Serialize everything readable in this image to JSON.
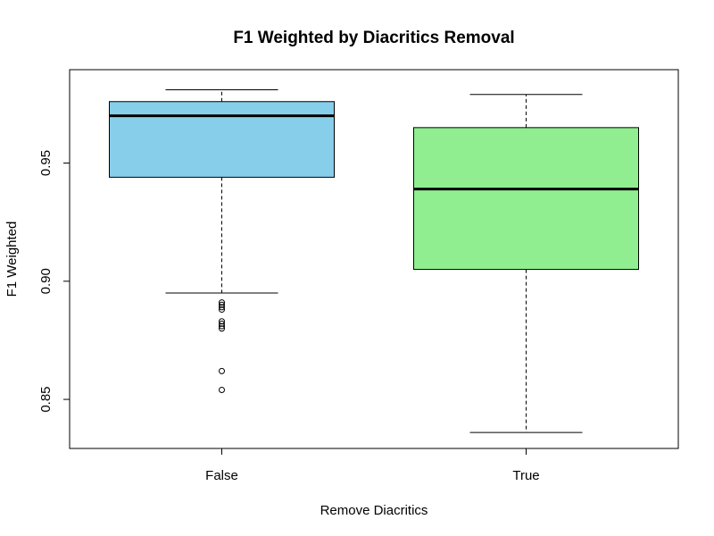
{
  "chart_data": {
    "type": "boxplot",
    "title": "F1 Weighted by Diacritics Removal",
    "xlabel": "Remove Diacritics",
    "ylabel": "F1 Weighted",
    "ylim": [
      0.83,
      0.988
    ],
    "yticks": [
      0.85,
      0.9,
      0.95
    ],
    "ytick_labels": [
      "0.85",
      "0.90",
      "0.95"
    ],
    "grid": false,
    "categories": [
      "False",
      "True"
    ],
    "boxes": [
      {
        "category": "False",
        "color": "#87CEEB",
        "whisker_low": 0.895,
        "q1": 0.944,
        "median": 0.97,
        "q3": 0.976,
        "whisker_high": 0.981,
        "outliers": [
          0.891,
          0.89,
          0.889,
          0.888,
          0.883,
          0.882,
          0.881,
          0.88,
          0.862,
          0.854
        ]
      },
      {
        "category": "True",
        "color": "#90EE90",
        "whisker_low": 0.836,
        "q1": 0.905,
        "median": 0.939,
        "q3": 0.965,
        "whisker_high": 0.979,
        "outliers": []
      }
    ]
  }
}
